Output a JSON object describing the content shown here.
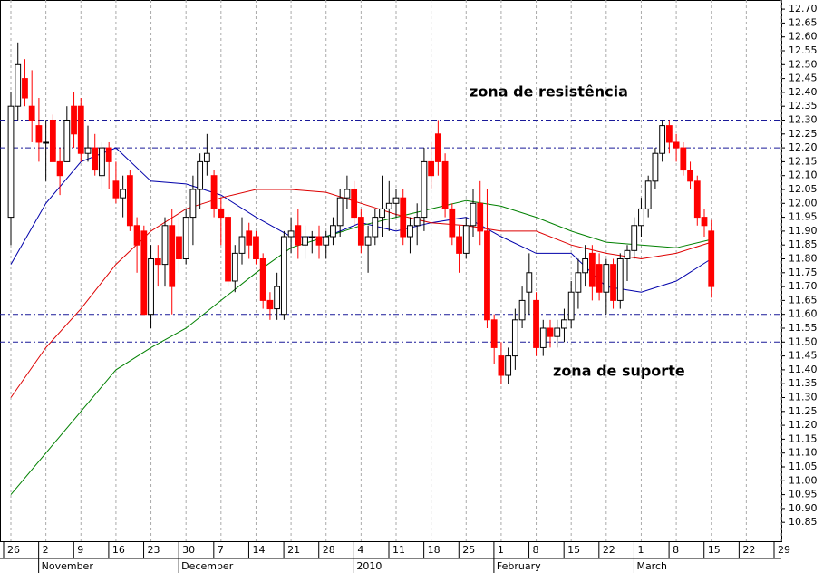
{
  "chart_data": {
    "type": "candlestick",
    "categories": [
      "26",
      null,
      null,
      null,
      null,
      "2",
      null,
      null,
      null,
      null,
      "9",
      null,
      null,
      null,
      null,
      "16",
      null,
      null,
      null,
      null,
      "23",
      null,
      null,
      null,
      null,
      "30",
      null,
      null,
      null,
      null,
      "7",
      null,
      null,
      null,
      null,
      "14",
      null,
      null,
      null,
      null,
      "21",
      null,
      null,
      null,
      null,
      "28",
      null,
      null,
      null,
      null,
      "4",
      null,
      null,
      null,
      null,
      "11",
      null,
      null,
      null,
      null,
      "18",
      null,
      null,
      null,
      null,
      "25",
      null,
      null,
      null,
      null,
      "1",
      null,
      null,
      null,
      null,
      "8",
      null,
      null,
      null,
      null,
      "15",
      null,
      null,
      null,
      null,
      "22",
      null,
      null,
      null,
      null,
      "1",
      null,
      null,
      null,
      null,
      "8",
      null,
      null,
      null,
      null,
      "15",
      null,
      null,
      null,
      null,
      "22",
      null,
      null,
      null,
      null,
      "29"
    ],
    "month_labels": [
      null,
      null,
      null,
      null,
      null,
      "November",
      null,
      null,
      null,
      null,
      null,
      null,
      null,
      null,
      null,
      null,
      null,
      null,
      null,
      null,
      null,
      null,
      null,
      null,
      null,
      "December",
      null,
      null,
      null,
      null,
      null,
      null,
      null,
      null,
      null,
      null,
      null,
      null,
      null,
      null,
      null,
      null,
      null,
      null,
      null,
      null,
      null,
      null,
      null,
      null,
      "2010",
      null,
      null,
      null,
      null,
      null,
      null,
      null,
      null,
      null,
      null,
      null,
      null,
      null,
      null,
      null,
      null,
      null,
      null,
      null,
      "February",
      null,
      null,
      null,
      null,
      null,
      null,
      null,
      null,
      null,
      null,
      null,
      null,
      null,
      null,
      null,
      null,
      null,
      null,
      null,
      "March",
      null,
      null,
      null,
      null,
      null,
      null,
      null,
      null,
      null,
      null,
      null,
      null,
      null,
      null,
      null,
      null,
      null,
      null,
      null,
      null
    ],
    "open": [
      11.95,
      12.35,
      12.45,
      12.35,
      12.28,
      12.22,
      12.3,
      12.15,
      12.15,
      12.35,
      12.35,
      12.18,
      12.2,
      12.1,
      12.2,
      12.08,
      12.02,
      12.1,
      11.92,
      11.9,
      11.6,
      11.8,
      11.78,
      11.92,
      11.88,
      11.8,
      11.95,
      12.05,
      12.15,
      12.1,
      11.98,
      11.95,
      11.72,
      11.82,
      11.9,
      11.88,
      11.8,
      11.65,
      11.62,
      11.6,
      11.88,
      11.92,
      11.85,
      11.88,
      11.88,
      11.85,
      11.88,
      11.92,
      12.02,
      12.05,
      11.95,
      11.85,
      11.88,
      11.95,
      11.98,
      12.0,
      12.02,
      11.88,
      11.92,
      11.95,
      12.15,
      12.25,
      12.15,
      11.98,
      11.88,
      11.82,
      11.92,
      12.0,
      11.9,
      11.58,
      11.45,
      11.38,
      11.45,
      11.58,
      11.68,
      11.65,
      11.48,
      11.55,
      11.52,
      11.55,
      11.58,
      11.68,
      11.75,
      11.82,
      11.78,
      11.68,
      11.78,
      11.65,
      11.8,
      11.83,
      11.92,
      11.98,
      12.08,
      12.18,
      12.28,
      12.22,
      12.2,
      12.12,
      12.08,
      11.95,
      11.9,
      null,
      null,
      null,
      null,
      null,
      null,
      null,
      null,
      null,
      null
    ],
    "high": [
      12.4,
      12.58,
      12.52,
      12.48,
      12.38,
      12.3,
      12.32,
      12.2,
      12.35,
      12.4,
      12.38,
      12.28,
      12.25,
      12.22,
      12.22,
      12.15,
      12.1,
      12.12,
      11.95,
      11.92,
      11.85,
      11.85,
      11.95,
      11.98,
      11.95,
      11.98,
      12.1,
      12.18,
      12.25,
      12.12,
      12.02,
      11.96,
      11.85,
      11.95,
      11.93,
      11.9,
      11.82,
      11.68,
      11.75,
      11.9,
      11.95,
      11.98,
      11.92,
      11.9,
      11.92,
      11.9,
      11.95,
      12.05,
      12.1,
      12.08,
      11.98,
      11.92,
      11.98,
      12.1,
      12.08,
      12.05,
      12.05,
      11.95,
      12.0,
      12.2,
      12.22,
      12.3,
      12.18,
      12.0,
      11.92,
      11.95,
      12.05,
      12.08,
      12.05,
      11.6,
      11.5,
      11.48,
      11.62,
      11.7,
      11.82,
      11.68,
      11.58,
      11.58,
      11.58,
      11.62,
      11.72,
      11.8,
      11.85,
      11.85,
      11.82,
      11.8,
      11.8,
      11.82,
      11.85,
      11.95,
      12.02,
      12.1,
      12.2,
      12.3,
      12.3,
      12.25,
      12.22,
      12.15,
      12.1,
      11.98,
      11.94,
      null,
      null,
      null,
      null,
      null,
      null,
      null,
      null,
      null,
      null
    ],
    "low": [
      11.85,
      12.3,
      12.35,
      12.22,
      12.15,
      12.08,
      12.15,
      12.03,
      12.15,
      12.2,
      12.15,
      12.15,
      12.1,
      12.05,
      12.05,
      12.0,
      11.95,
      11.9,
      11.75,
      11.6,
      11.55,
      11.7,
      11.7,
      11.6,
      11.75,
      11.78,
      11.85,
      11.98,
      12.1,
      11.95,
      11.85,
      11.7,
      11.68,
      11.78,
      11.8,
      11.78,
      11.62,
      11.58,
      11.58,
      11.58,
      11.82,
      11.8,
      11.8,
      11.82,
      11.8,
      11.8,
      11.85,
      11.88,
      11.98,
      11.92,
      11.82,
      11.75,
      11.85,
      11.88,
      11.9,
      11.95,
      11.85,
      11.82,
      11.85,
      11.9,
      12.05,
      12.1,
      11.95,
      11.85,
      11.75,
      11.8,
      11.88,
      11.85,
      11.55,
      11.42,
      11.35,
      11.35,
      11.4,
      11.55,
      11.6,
      11.45,
      11.45,
      11.48,
      11.48,
      11.5,
      11.55,
      11.62,
      11.7,
      11.65,
      11.65,
      11.6,
      11.62,
      11.62,
      11.72,
      11.8,
      11.88,
      11.95,
      12.05,
      12.15,
      12.18,
      12.15,
      12.1,
      12.05,
      11.92,
      11.88,
      11.66,
      null,
      null,
      null,
      null,
      null,
      null,
      null,
      null,
      null,
      null
    ],
    "close": [
      12.35,
      12.5,
      12.38,
      12.3,
      12.22,
      12.22,
      12.15,
      12.1,
      12.3,
      12.25,
      12.18,
      12.2,
      12.12,
      12.2,
      12.15,
      12.02,
      12.05,
      11.92,
      11.85,
      11.6,
      11.8,
      11.78,
      11.92,
      11.7,
      11.8,
      11.95,
      12.05,
      12.15,
      12.18,
      11.98,
      11.95,
      11.72,
      11.82,
      11.88,
      11.85,
      11.8,
      11.65,
      11.62,
      11.7,
      11.88,
      11.9,
      11.85,
      11.88,
      11.88,
      11.85,
      11.88,
      11.92,
      12.02,
      12.05,
      11.95,
      11.85,
      11.88,
      11.95,
      11.98,
      12.0,
      12.02,
      11.88,
      11.92,
      11.95,
      12.15,
      12.1,
      12.15,
      11.98,
      11.88,
      11.82,
      11.92,
      12.0,
      11.9,
      11.58,
      11.48,
      11.38,
      11.45,
      11.58,
      11.65,
      11.75,
      11.48,
      11.55,
      11.52,
      11.55,
      11.58,
      11.68,
      11.75,
      11.8,
      11.7,
      11.68,
      11.78,
      11.65,
      11.8,
      11.83,
      11.92,
      11.98,
      12.08,
      12.18,
      12.28,
      12.22,
      12.2,
      12.12,
      12.08,
      11.95,
      11.92,
      11.7,
      null,
      null,
      null,
      null,
      null,
      null,
      null,
      null,
      null,
      null
    ],
    "up_color": "#ffffff",
    "down_color": "#ff0000",
    "series": [
      {
        "color": "#0000aa",
        "x": [
          0,
          5,
          10,
          15,
          20,
          25,
          30,
          35,
          40,
          45,
          50,
          55,
          60,
          65,
          70,
          75,
          80,
          85,
          90,
          95,
          100
        ],
        "values": [
          11.78,
          12.0,
          12.15,
          12.2,
          12.08,
          12.07,
          12.03,
          11.95,
          11.88,
          11.88,
          11.93,
          11.9,
          11.93,
          11.95,
          11.88,
          11.82,
          11.82,
          11.7,
          11.68,
          11.72,
          11.8
        ]
      },
      {
        "color": "#dd0000",
        "x": [
          0,
          5,
          10,
          15,
          20,
          25,
          30,
          35,
          40,
          45,
          50,
          55,
          60,
          65,
          70,
          75,
          80,
          85,
          90,
          95,
          100
        ],
        "values": [
          11.3,
          11.48,
          11.62,
          11.78,
          11.9,
          11.98,
          12.02,
          12.05,
          12.05,
          12.04,
          12.0,
          11.96,
          11.93,
          11.92,
          11.9,
          11.9,
          11.85,
          11.82,
          11.8,
          11.82,
          11.86
        ]
      },
      {
        "color": "#008000",
        "x": [
          0,
          5,
          10,
          15,
          20,
          25,
          30,
          35,
          40,
          45,
          50,
          55,
          60,
          65,
          70,
          75,
          80,
          85,
          90,
          95,
          100
        ],
        "values": [
          10.95,
          11.1,
          11.25,
          11.4,
          11.48,
          11.55,
          11.65,
          11.75,
          11.84,
          11.88,
          11.92,
          11.95,
          11.98,
          12.01,
          11.99,
          11.95,
          11.9,
          11.86,
          11.85,
          11.84,
          11.87
        ]
      }
    ],
    "reference_lines": [
      12.3,
      12.2,
      11.6,
      11.5
    ],
    "reference_color": "#1a1a99",
    "annotations": [
      "zona de resistência",
      "zona de suporte"
    ],
    "ylim": [
      10.782,
      12.733
    ],
    "yticks": [
      {
        "value": 12.7,
        "label": "12.70"
      },
      {
        "value": 12.65,
        "label": "12.65"
      },
      {
        "value": 12.6,
        "label": "12.60"
      },
      {
        "value": 12.55,
        "label": "12.55"
      },
      {
        "value": 12.5,
        "label": "12.50"
      },
      {
        "value": 12.45,
        "label": "12.45"
      },
      {
        "value": 12.4,
        "label": "12.40"
      },
      {
        "value": 12.35,
        "label": "12.35"
      },
      {
        "value": 12.3,
        "label": "12.30"
      },
      {
        "value": 12.25,
        "label": "12.25"
      },
      {
        "value": 12.2,
        "label": "12.20"
      },
      {
        "value": 12.15,
        "label": "12.15"
      },
      {
        "value": 12.1,
        "label": "12.10"
      },
      {
        "value": 12.05,
        "label": "12.05"
      },
      {
        "value": 12.0,
        "label": "12.00"
      },
      {
        "value": 11.95,
        "label": "11.95"
      },
      {
        "value": 11.9,
        "label": "11.90"
      },
      {
        "value": 11.85,
        "label": "11.85"
      },
      {
        "value": 11.8,
        "label": "11.80"
      },
      {
        "value": 11.75,
        "label": "11.75"
      },
      {
        "value": 11.7,
        "label": "11.70"
      },
      {
        "value": 11.65,
        "label": "11.65"
      },
      {
        "value": 11.6,
        "label": "11.60"
      },
      {
        "value": 11.55,
        "label": "11.55"
      },
      {
        "value": 11.5,
        "label": "11.50"
      },
      {
        "value": 11.45,
        "label": "11.45"
      },
      {
        "value": 11.4,
        "label": "11.40"
      },
      {
        "value": 11.35,
        "label": "11.35"
      },
      {
        "value": 11.3,
        "label": "11.30"
      },
      {
        "value": 11.25,
        "label": "11.25"
      },
      {
        "value": 11.2,
        "label": "11.20"
      },
      {
        "value": 11.15,
        "label": "11.15"
      },
      {
        "value": 11.1,
        "label": "11.10"
      },
      {
        "value": 11.05,
        "label": "11.05"
      },
      {
        "value": 11.0,
        "label": "11.00"
      },
      {
        "value": 10.95,
        "label": "10.95"
      },
      {
        "value": 10.9,
        "label": "10.90"
      },
      {
        "value": 10.85,
        "label": "10.85"
      }
    ],
    "grid": true
  }
}
